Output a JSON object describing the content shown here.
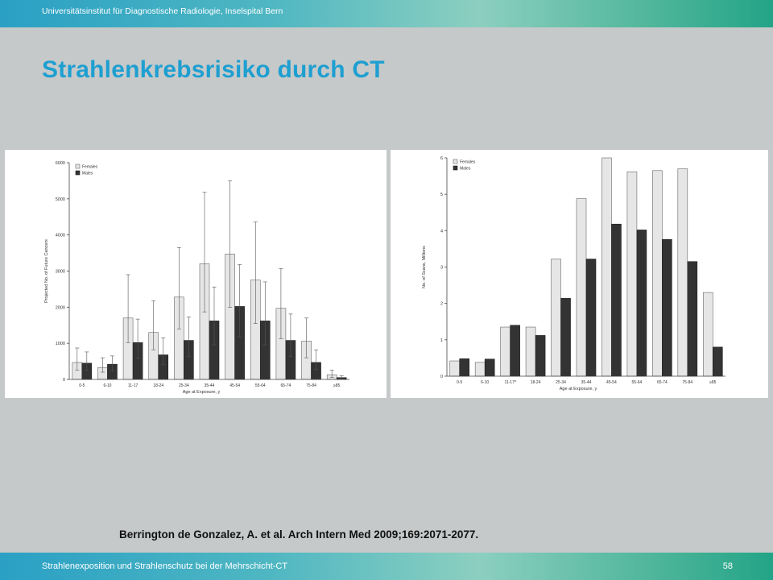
{
  "header": {
    "institute": "Universitätsinstitut für Diagnostische Radiologie, Inselspital Bern"
  },
  "slide": {
    "title": "Strahlenkrebsrisiko durch CT"
  },
  "citation": "Berrington de Gonzalez, A. et al. Arch Intern Med 2009;169:2071-2077.",
  "footer": {
    "text": "Strahlenexposition und Strahlenschutz bei der Mehrschicht-CT",
    "page": "58"
  },
  "colors": {
    "females": "#e6e6e6",
    "males": "#333333",
    "title": "#1e9fd1"
  },
  "chart_data": [
    {
      "type": "bar",
      "xlabel": "Age at Exposure, y",
      "ylabel": "Projected No. of Future Cancers",
      "categories": [
        "0-5",
        "6-10",
        "11-17",
        "18-24",
        "25-34",
        "35-44",
        "45-54",
        "55-64",
        "65-74",
        "75-84",
        "≥85"
      ],
      "ylim": [
        0,
        6000
      ],
      "yticks": [
        "0",
        "1000",
        "2000",
        "3000",
        "4000",
        "5000",
        "6000"
      ],
      "legend_position": "top-left",
      "series": [
        {
          "name": "Females",
          "values": [
            470,
            330,
            1700,
            1300,
            2280,
            3200,
            3470,
            2750,
            1970,
            1060,
            130
          ],
          "error_low": [
            260,
            200,
            1020,
            820,
            1400,
            1870,
            2000,
            1550,
            1130,
            600,
            60
          ],
          "error_high": [
            870,
            600,
            2900,
            2180,
            3650,
            5180,
            5500,
            4360,
            3070,
            1700,
            260
          ]
        },
        {
          "name": "Males",
          "values": [
            450,
            420,
            1020,
            680,
            1080,
            1620,
            2020,
            1620,
            1080,
            470,
            50
          ],
          "error_low": [
            260,
            240,
            580,
            410,
            630,
            960,
            1180,
            960,
            640,
            270,
            20
          ],
          "error_high": [
            760,
            650,
            1670,
            1150,
            1730,
            2560,
            3180,
            2700,
            1810,
            820,
            100
          ]
        }
      ]
    },
    {
      "type": "bar",
      "xlabel": "Age at Exposure, y",
      "ylabel": "No. of Scans, Millions",
      "categories": [
        "0-5",
        "6-10",
        "11-17",
        "18-24",
        "25-34",
        "35-44",
        "45-54",
        "55-64",
        "65-74",
        "75-84",
        "≥85"
      ],
      "category_marks": [
        "",
        "",
        "a",
        "",
        "",
        "",
        "",
        "",
        "",
        "",
        ""
      ],
      "ylim": [
        0,
        6
      ],
      "yticks": [
        "0",
        "1",
        "2",
        "3",
        "4",
        "5",
        "6"
      ],
      "legend_position": "top-left",
      "series": [
        {
          "name": "Females",
          "values": [
            0.42,
            0.38,
            1.35,
            1.35,
            3.22,
            4.88,
            6.0,
            5.62,
            5.65,
            5.7,
            2.3
          ]
        },
        {
          "name": "Males",
          "values": [
            0.48,
            0.47,
            1.4,
            1.12,
            2.14,
            3.22,
            4.18,
            4.02,
            3.76,
            3.15,
            0.8
          ]
        }
      ]
    }
  ]
}
